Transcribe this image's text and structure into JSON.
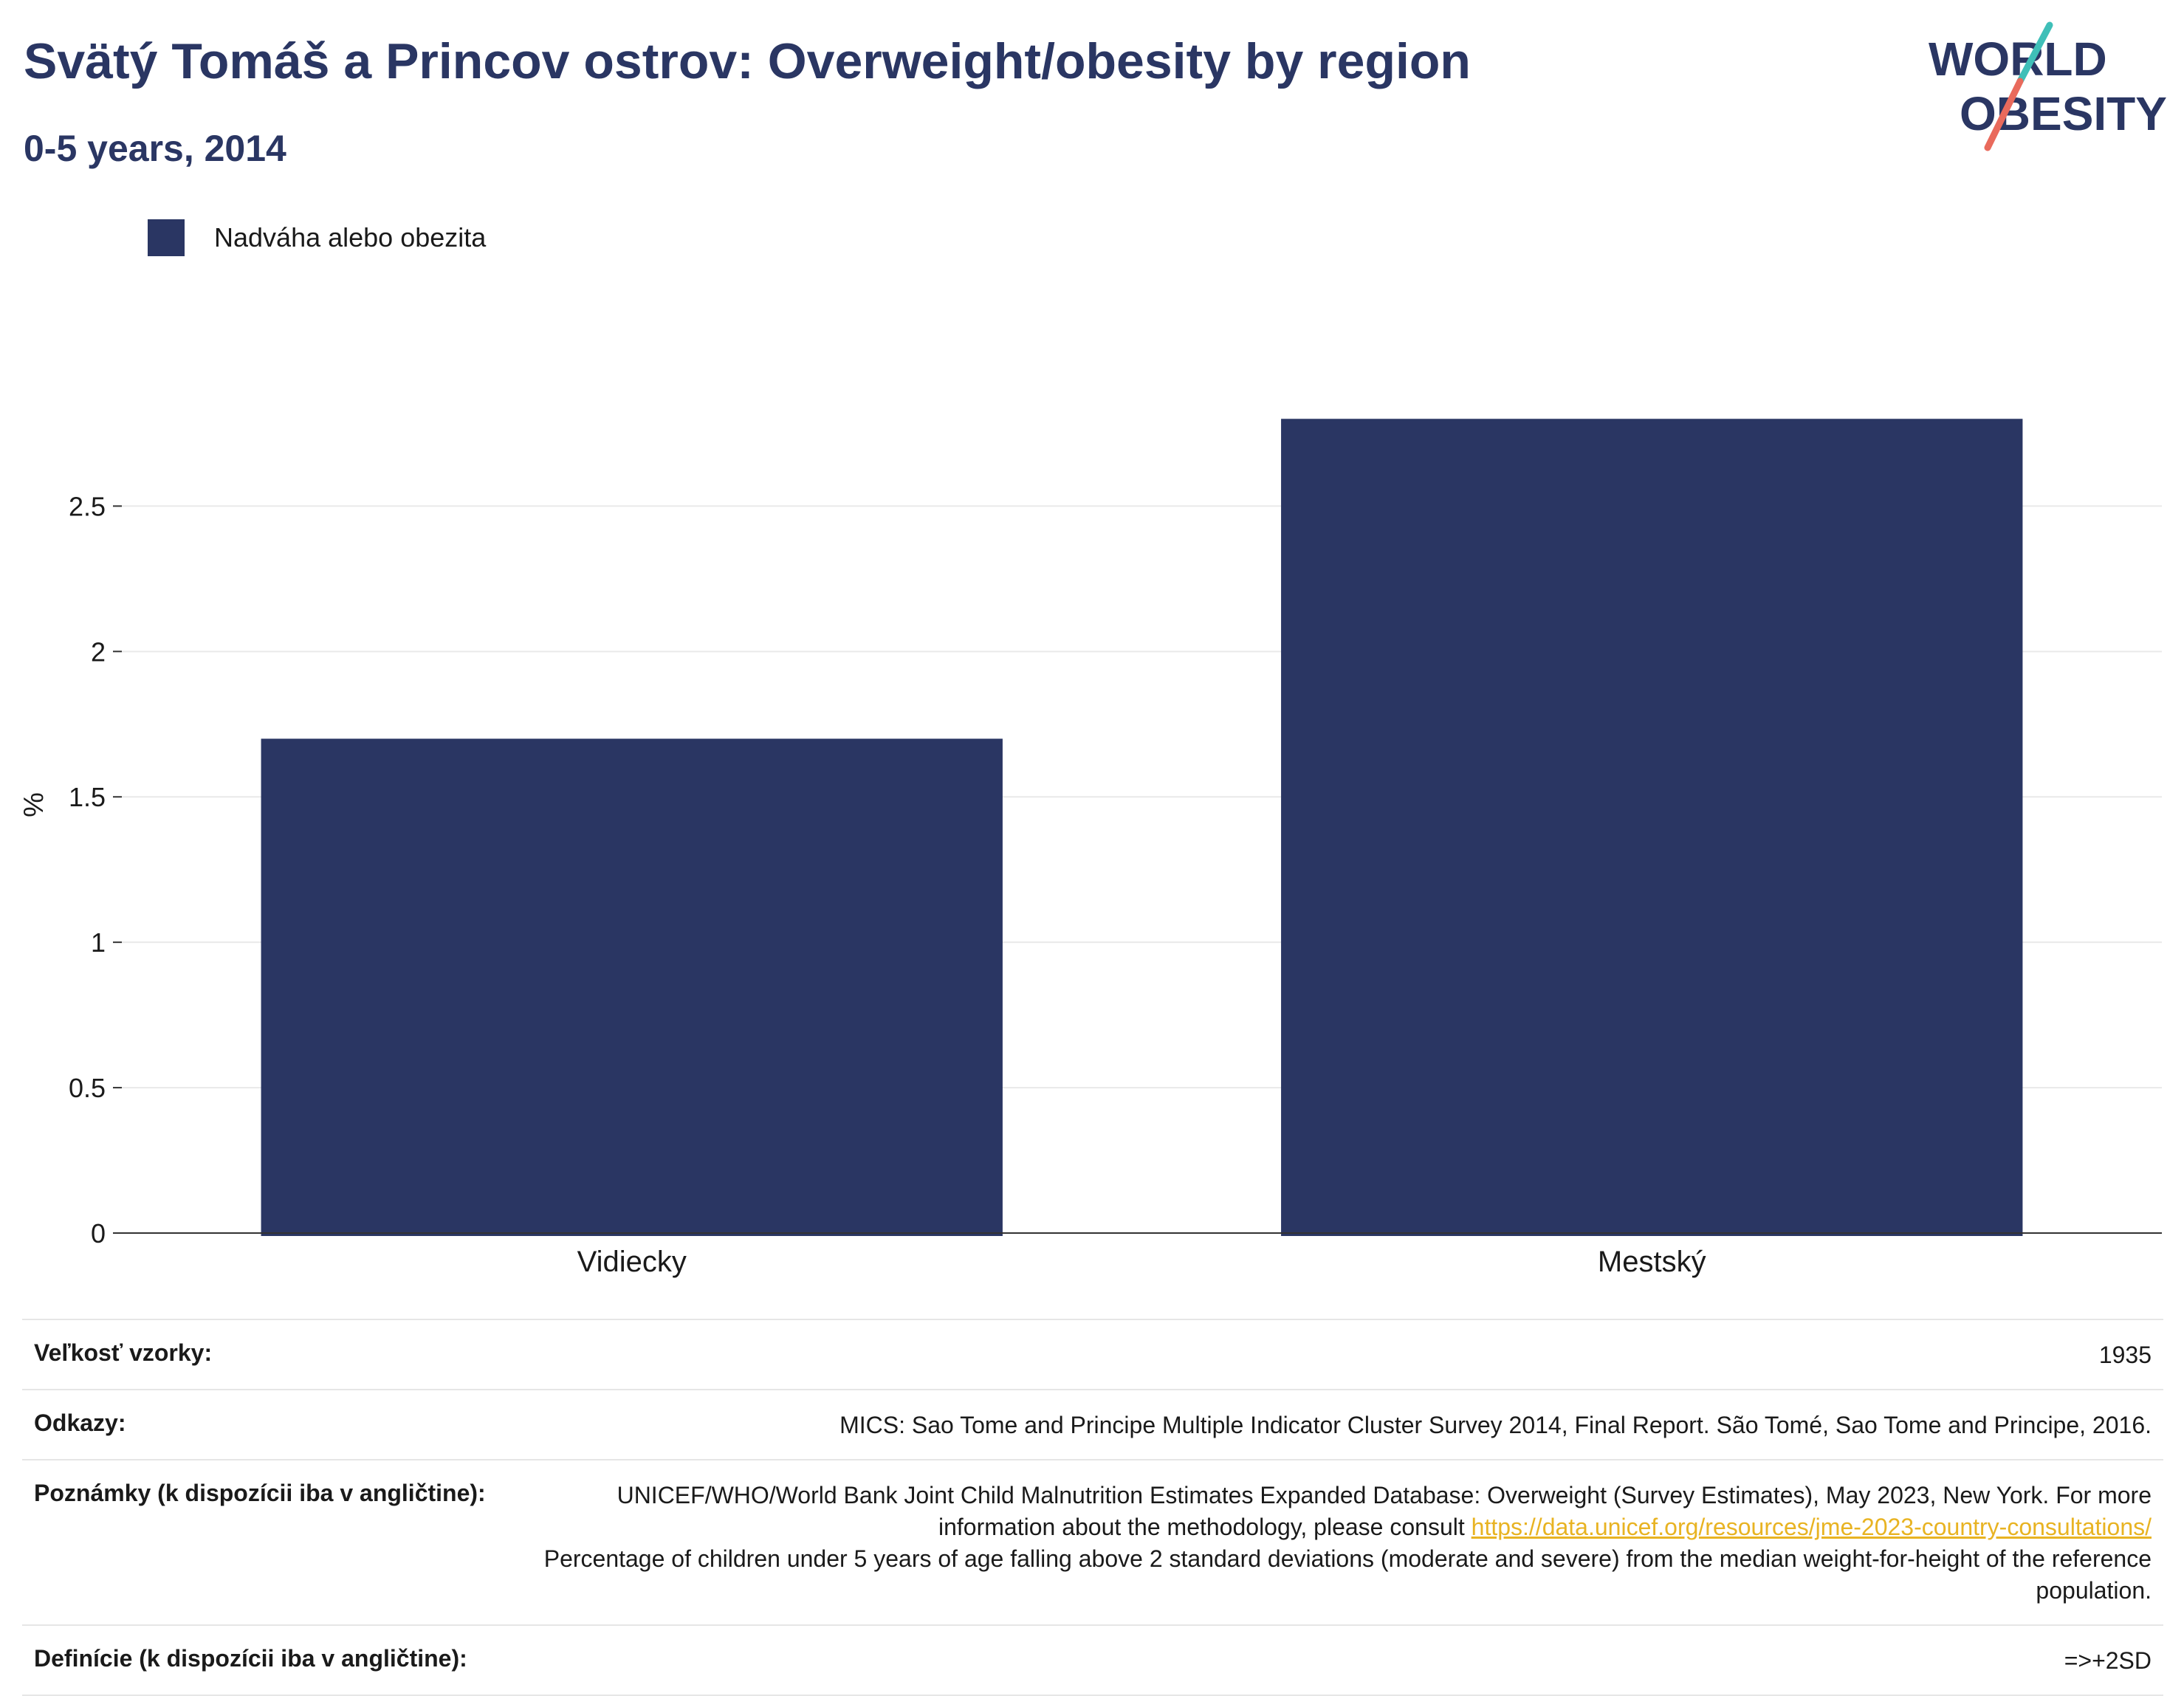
{
  "header": {
    "title": "Svätý Tomáš a Princov ostrov: Overweight/obesity by region",
    "subtitle": "0-5 years, 2014"
  },
  "logo": {
    "line1": "WORLD",
    "line2": "OBESITY",
    "colors": {
      "text": "#2a3663",
      "slash_top": "#3fbfb8",
      "slash_bottom": "#e96a5c"
    }
  },
  "legend": {
    "label": "Nadváha alebo obezita",
    "color": "#2a3663"
  },
  "chart_data": {
    "type": "bar",
    "categories": [
      "Vidiecky",
      "Mestský"
    ],
    "series": [
      {
        "name": "Nadváha alebo obezita",
        "values": [
          1.7,
          2.8
        ],
        "color": "#2a3663"
      }
    ],
    "ylabel": "%",
    "xlabel": "",
    "ylim": [
      0,
      2.92
    ],
    "yticks": [
      0,
      0.5,
      1,
      1.5,
      2,
      2.5
    ],
    "ytick_labels": [
      "0",
      "0.5",
      "1",
      "1.5",
      "2",
      "2.5"
    ],
    "grid": true,
    "legend_position": "top-left"
  },
  "meta": {
    "sample_label": "Veľkosť vzorky:",
    "sample_value": "1935",
    "refs_label": "Odkazy:",
    "refs_value": "MICS: Sao Tome and Principe Multiple Indicator Cluster Survey 2014, Final Report. São Tomé, Sao Tome and Principe, 2016.",
    "notes_label": "Poznámky (k dispozícii iba v angličtine):",
    "notes_text1": "UNICEF/WHO/World Bank Joint Child Malnutrition Estimates Expanded Database: Overweight (Survey Estimates), May 2023, New York. For more information about the methodology, please consult ",
    "notes_link": "https://data.unicef.org/resources/jme-2023-country-consultations/",
    "notes_text2": "Percentage of children under 5 years of age falling above 2 standard deviations (moderate and severe) from the median weight-for-height of the reference population.",
    "defs_label": "Definície (k dispozícii iba v angličtine):",
    "defs_value": "=>+2SD",
    "link_color": "#e8b322"
  }
}
